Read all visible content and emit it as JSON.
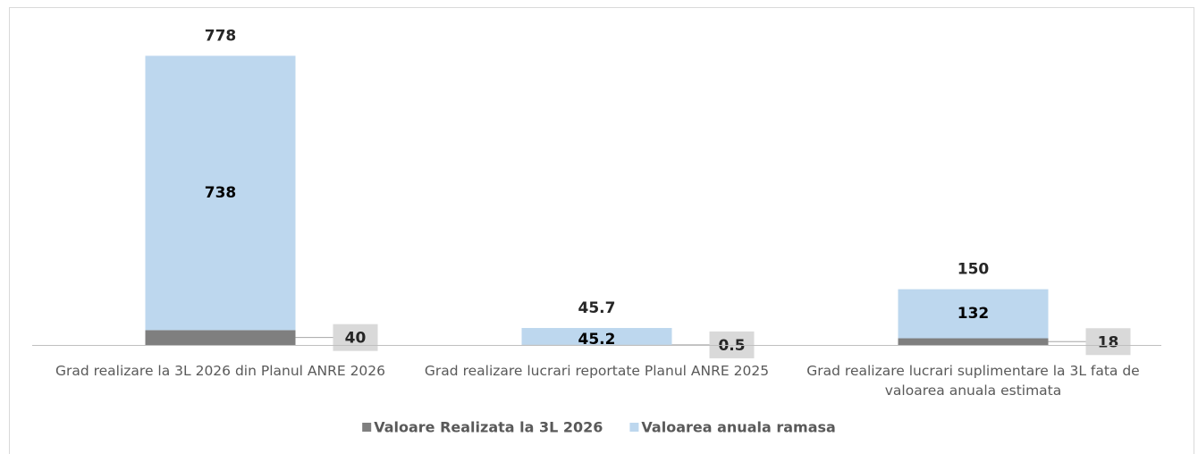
{
  "chart_data": {
    "type": "stacked_bar",
    "categories": [
      "Grad realizare la 3L 2026 din Planul ANRE 2026",
      "Grad realizare lucrari reportate Planul ANRE 2025",
      "Grad realizare lucrari suplimentare la 3L fata de valoarea anuala estimata"
    ],
    "series": [
      {
        "name": "Valoare Realizata la 3L 2026",
        "color": "#7f7f7f",
        "values": [
          40,
          0.5,
          18
        ]
      },
      {
        "name": "Valoarea anuala ramasa",
        "color": "#bdd7ee",
        "values": [
          738,
          45.2,
          132
        ]
      }
    ],
    "totals": [
      778,
      45.7,
      150
    ],
    "ylim": [
      0,
      880
    ],
    "legend": "bottom"
  }
}
